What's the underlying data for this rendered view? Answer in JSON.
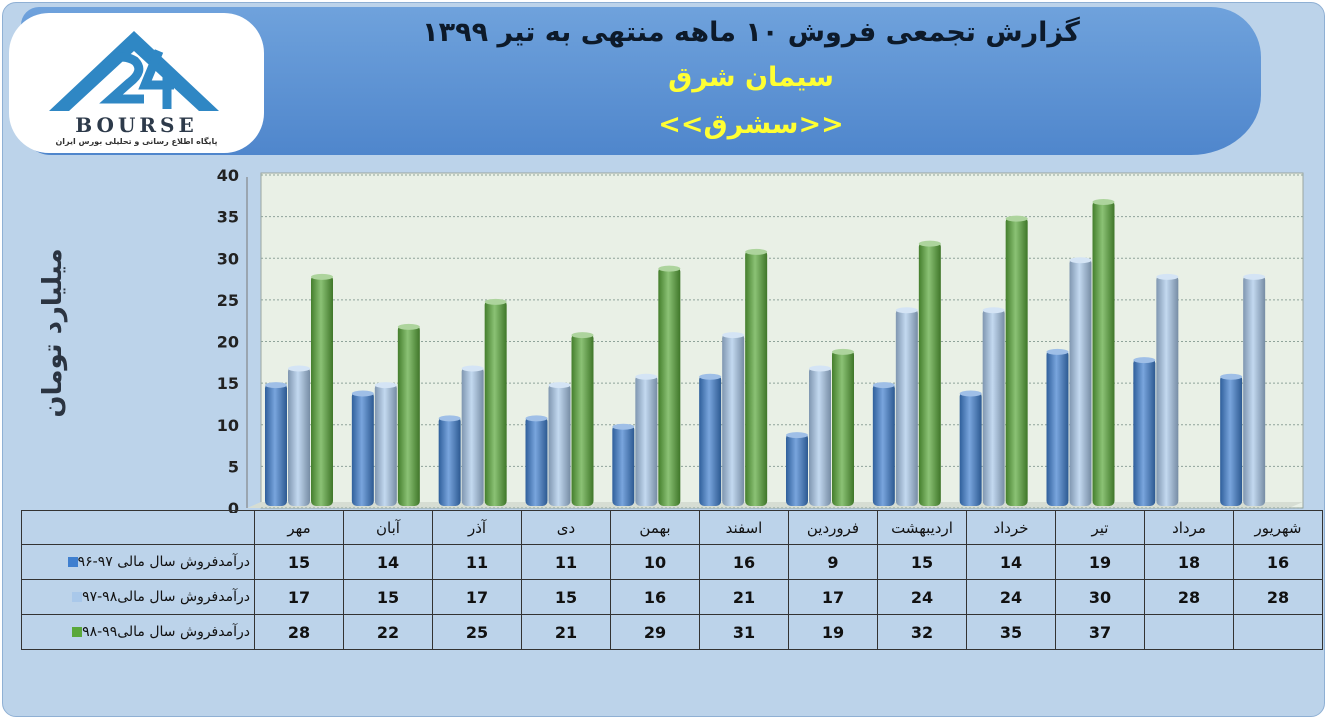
{
  "header": {
    "title": "گزارش تجمعی فروش ۱۰ ماهه منتهی به تیر ۱۳۹۹",
    "company": "سیمان شرق",
    "symbol": "<<سشرق>>"
  },
  "logo": {
    "name": "BOURSE",
    "subtitle": "پایگاه اطلاع رسانی و تحلیلی بورس ایران"
  },
  "colors": {
    "series1": "#3f7fcf",
    "series2": "#a9c8ea",
    "series3": "#5aa83a",
    "banner": "#5b8fd2",
    "title_highlight": "#ffff33"
  },
  "chart_data": {
    "type": "bar",
    "title": "گزارش تجمعی فروش ۱۰ ماهه منتهی به تیر ۱۳۹۹",
    "ylabel": "میلیارد تومان",
    "xlabel": "",
    "ylim": [
      0,
      40
    ],
    "yticks": [
      "0",
      "5",
      "10",
      "15",
      "20",
      "25",
      "30",
      "35",
      "40"
    ],
    "grid": true,
    "categories": [
      "مهر",
      "آبان",
      "آذر",
      "دی",
      "بهمن",
      "اسفند",
      "فروردین",
      "اردیبهشت",
      "خرداد",
      "تیر",
      "مرداد",
      "شهریور"
    ],
    "series": [
      {
        "name": "درآمدفروش سال مالی ۹۷-۹۶",
        "values": [
          15,
          14,
          11,
          11,
          10,
          16,
          9,
          15,
          14,
          19,
          18,
          16
        ]
      },
      {
        "name": "درآمدفروش سال مالی۹۸-۹۷",
        "values": [
          17,
          15,
          17,
          15,
          16,
          21,
          17,
          24,
          24,
          30,
          28,
          28
        ]
      },
      {
        "name": "درآمدفروش سال مالی۹۹-۹۸",
        "values": [
          28,
          22,
          25,
          21,
          29,
          31,
          19,
          32,
          35,
          37,
          null,
          null
        ]
      }
    ],
    "table_values": [
      [
        "15",
        "14",
        "11",
        "11",
        "10",
        "16",
        "9",
        "15",
        "14",
        "19",
        "18",
        "16"
      ],
      [
        "17",
        "15",
        "17",
        "15",
        "16",
        "21",
        "17",
        "24",
        "24",
        "30",
        "28",
        "28"
      ],
      [
        "28",
        "22",
        "25",
        "21",
        "29",
        "31",
        "19",
        "32",
        "35",
        "37",
        "",
        ""
      ]
    ]
  }
}
